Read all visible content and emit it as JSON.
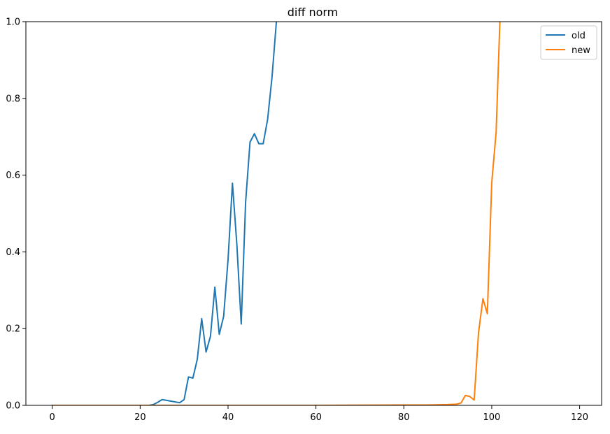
{
  "chart_data": {
    "type": "line",
    "title": "diff norm",
    "xlabel": "",
    "ylabel": "",
    "xlim": [
      -6,
      125
    ],
    "ylim": [
      0,
      1.0
    ],
    "xticks": [
      0,
      20,
      40,
      60,
      80,
      100,
      120
    ],
    "yticks": [
      0.0,
      0.2,
      0.4,
      0.6,
      0.8,
      1.0
    ],
    "ytick_labels": [
      "0.0",
      "0.2",
      "0.4",
      "0.6",
      "0.8",
      "1.0"
    ],
    "xtick_labels": [
      "0",
      "20",
      "40",
      "60",
      "80",
      "100",
      "120"
    ],
    "grid": false,
    "legend_position": "top-right",
    "series": [
      {
        "name": "old",
        "color": "#1f77b4",
        "x": [
          0,
          10,
          20,
          22,
          23,
          24,
          25,
          27,
          29,
          30,
          31,
          32,
          33,
          34,
          35,
          36,
          37,
          38,
          39,
          40,
          41,
          42,
          43,
          44,
          45,
          46,
          47,
          48,
          49,
          50,
          51,
          52
        ],
        "y": [
          0.0,
          0.0,
          0.0,
          0.0,
          0.002,
          0.008,
          0.015,
          0.011,
          0.007,
          0.015,
          0.074,
          0.071,
          0.12,
          0.226,
          0.139,
          0.18,
          0.308,
          0.185,
          0.232,
          0.38,
          0.579,
          0.42,
          0.212,
          0.53,
          0.686,
          0.708,
          0.682,
          0.682,
          0.745,
          0.855,
          1.0,
          1.05
        ]
      },
      {
        "name": "new",
        "color": "#ff7f0e",
        "x": [
          0,
          20,
          40,
          60,
          80,
          85,
          90,
          92,
          93,
          94,
          95,
          96,
          97,
          98,
          99,
          100,
          101,
          102
        ],
        "y": [
          0.0,
          0.0,
          0.0,
          0.0,
          0.001,
          0.001,
          0.002,
          0.003,
          0.006,
          0.026,
          0.023,
          0.014,
          0.19,
          0.278,
          0.239,
          0.58,
          0.712,
          1.05
        ]
      }
    ]
  }
}
